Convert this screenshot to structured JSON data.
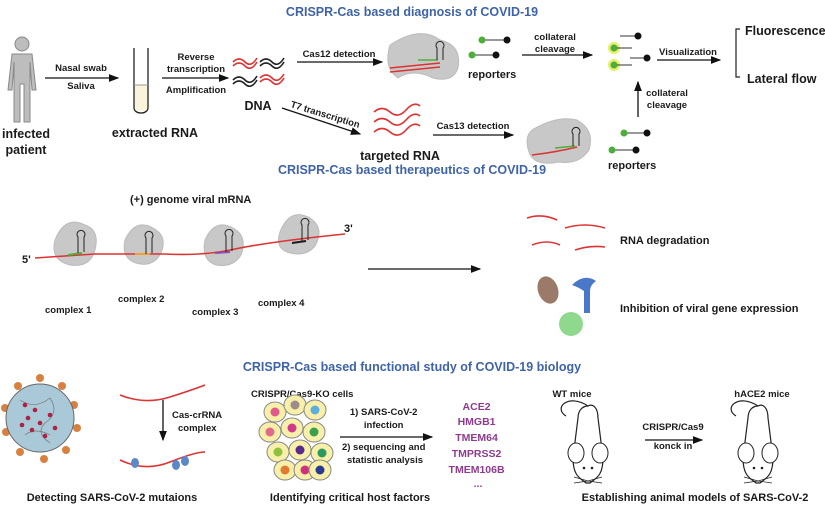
{
  "diagnosis": {
    "title": "CRISPR-Cas based diagnosis of COVID-19",
    "patient": [
      "infected",
      "patient"
    ],
    "sampling": [
      "Nasal swab",
      "Saliva"
    ],
    "extracted": "extracted RNA",
    "rt": [
      "Reverse",
      "transcription",
      "Amplification"
    ],
    "dna": "DNA",
    "cas12": "Cas12 detection",
    "t7": "T7 transcription",
    "targeted": "targeted RNA",
    "cas13": "Cas13 detection",
    "reporters": "reporters",
    "collateral": [
      "collateral",
      "cleavage"
    ],
    "visualization": "Visualization",
    "readouts": [
      "Fluorescence",
      "Lateral flow"
    ]
  },
  "therapeutics": {
    "title": "CRISPR-Cas based therapeutics of COVID-19",
    "genome": "(+) genome viral mRNA",
    "five": "5'",
    "three": "3'",
    "complexes": [
      "complex 1",
      "complex 2",
      "complex 3",
      "complex 4"
    ],
    "outcomes": [
      "RNA  degradation",
      "Inhibition of viral gene expression"
    ]
  },
  "functional": {
    "title": "CRISPR-Cas based functional study of  COVID-19 biology",
    "cas_crrna": [
      "Cas-crRNA",
      "complex"
    ],
    "mutations": "Detecting SARS-CoV-2 mutaions",
    "ko_cells": "CRISPR/Cas9-KO cells",
    "steps": [
      "1) SARS-CoV-2",
      "infection",
      "2) sequencing and",
      "statistic analysis"
    ],
    "genes": [
      "ACE2",
      "HMGB1",
      "TMEM64",
      "TMPRSS2",
      "TMEM106B",
      "..."
    ],
    "host": "Identifying critical host factors",
    "wt": "WT mice",
    "hace2": "hACE2 mice",
    "knockin": [
      "CRISPR/Cas9",
      "konck in"
    ],
    "models": "Establishing animal models of SARS-CoV-2"
  },
  "colors": {
    "heading": "#3f63a8",
    "rna": "#d33333",
    "gene": "#8e3b8e",
    "reporter": "#4caf3a"
  }
}
